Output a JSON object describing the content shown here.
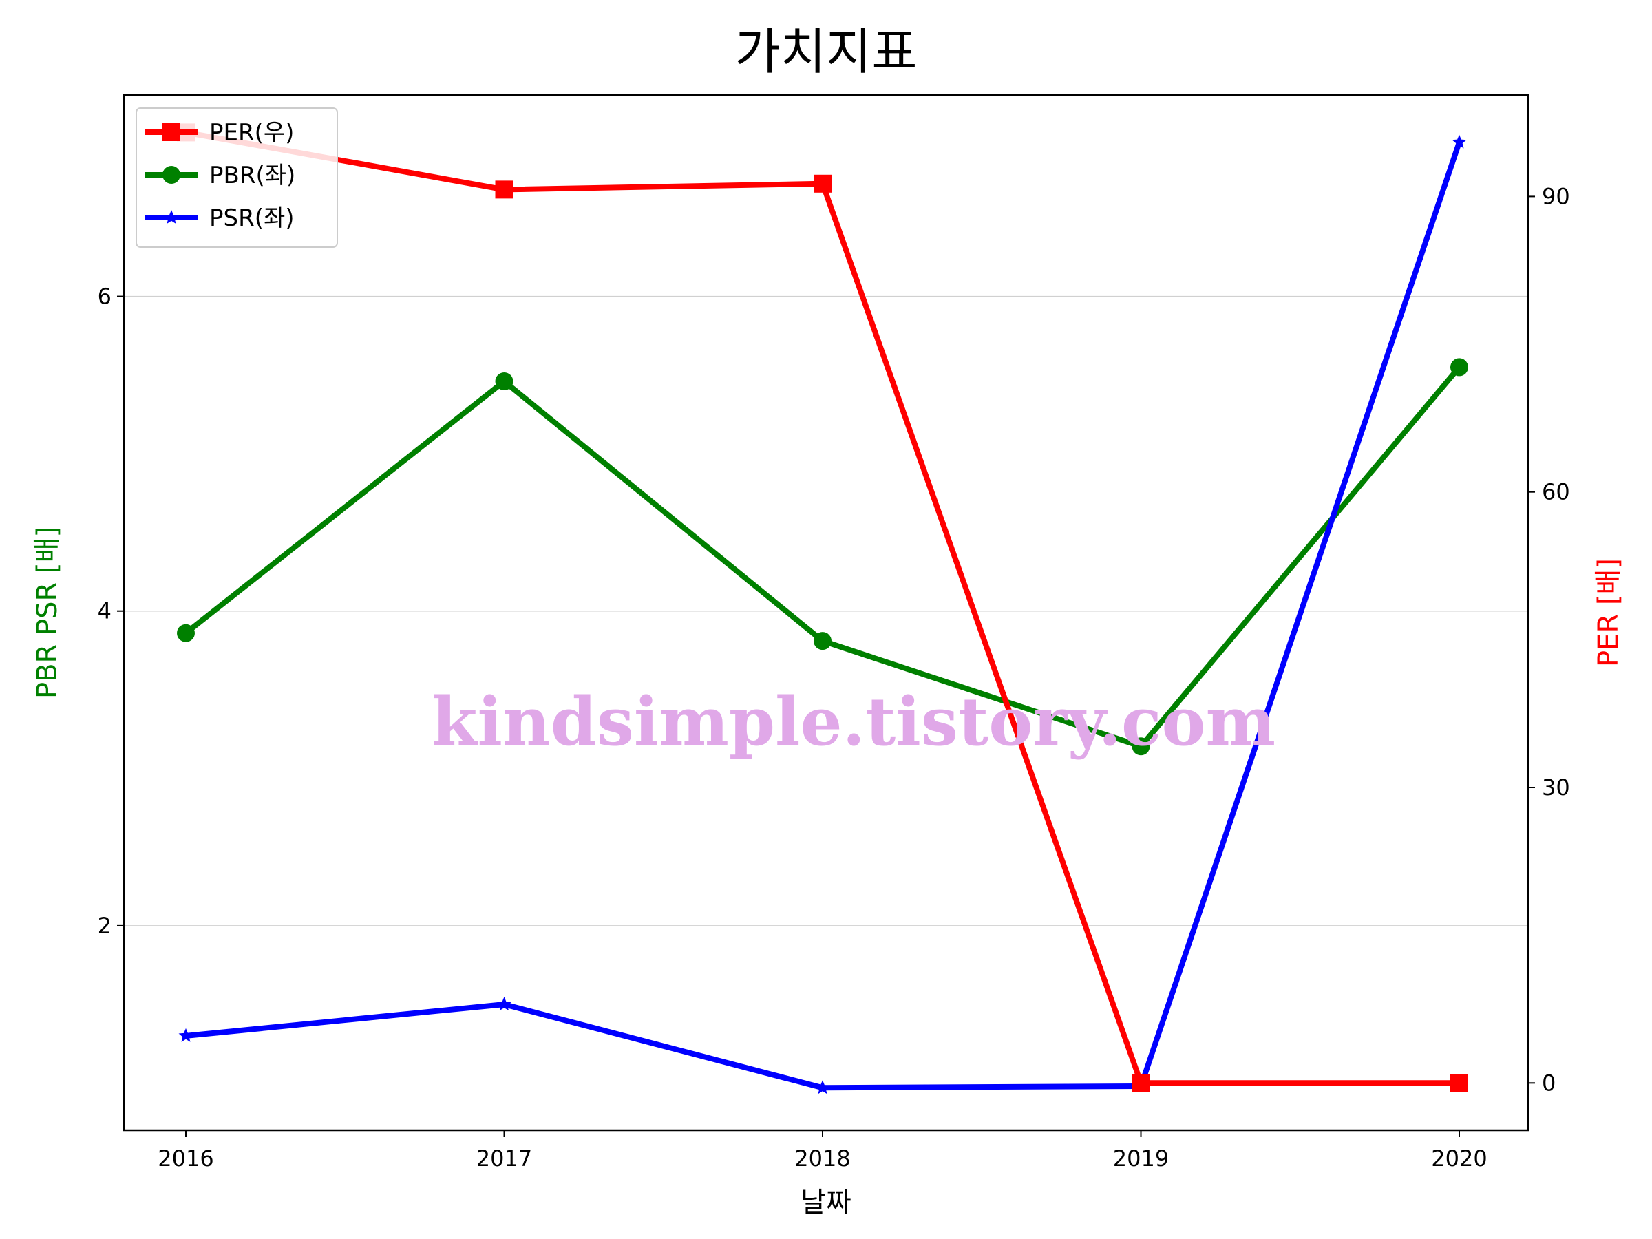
{
  "chart_data": {
    "type": "line",
    "title": "가치지표",
    "xlabel": "날짜",
    "ylabel_left": "PBR PSR [배]",
    "ylabel_right": "PER [배]",
    "categories": [
      "2016",
      "2017",
      "2018",
      "2019",
      "2020"
    ],
    "ylim_left": [
      0.7,
      7.28
    ],
    "ylim_right": [
      -4.8,
      100.3
    ],
    "yticks_left": [
      "2",
      "4",
      "6"
    ],
    "yticks_right": [
      "0",
      "30",
      "60",
      "90"
    ],
    "grid": "horizontal (left axis)",
    "legend_position": "top-left",
    "series": [
      {
        "name": "PER(우)",
        "axis": "right",
        "color": "#ff0000",
        "marker": "square",
        "values": [
          96.5,
          90.7,
          91.3,
          0,
          0
        ]
      },
      {
        "name": "PBR(좌)",
        "axis": "left",
        "color": "#008000",
        "marker": "circle",
        "values": [
          3.86,
          5.46,
          3.81,
          3.14,
          5.55
        ]
      },
      {
        "name": "PSR(좌)",
        "axis": "left",
        "color": "#0000ff",
        "marker": "star",
        "values": [
          1.3,
          1.5,
          0.97,
          0.98,
          6.98
        ]
      }
    ]
  },
  "watermark": {
    "text": "kindsimple.tistory.com",
    "color": "#e0a8e8"
  }
}
